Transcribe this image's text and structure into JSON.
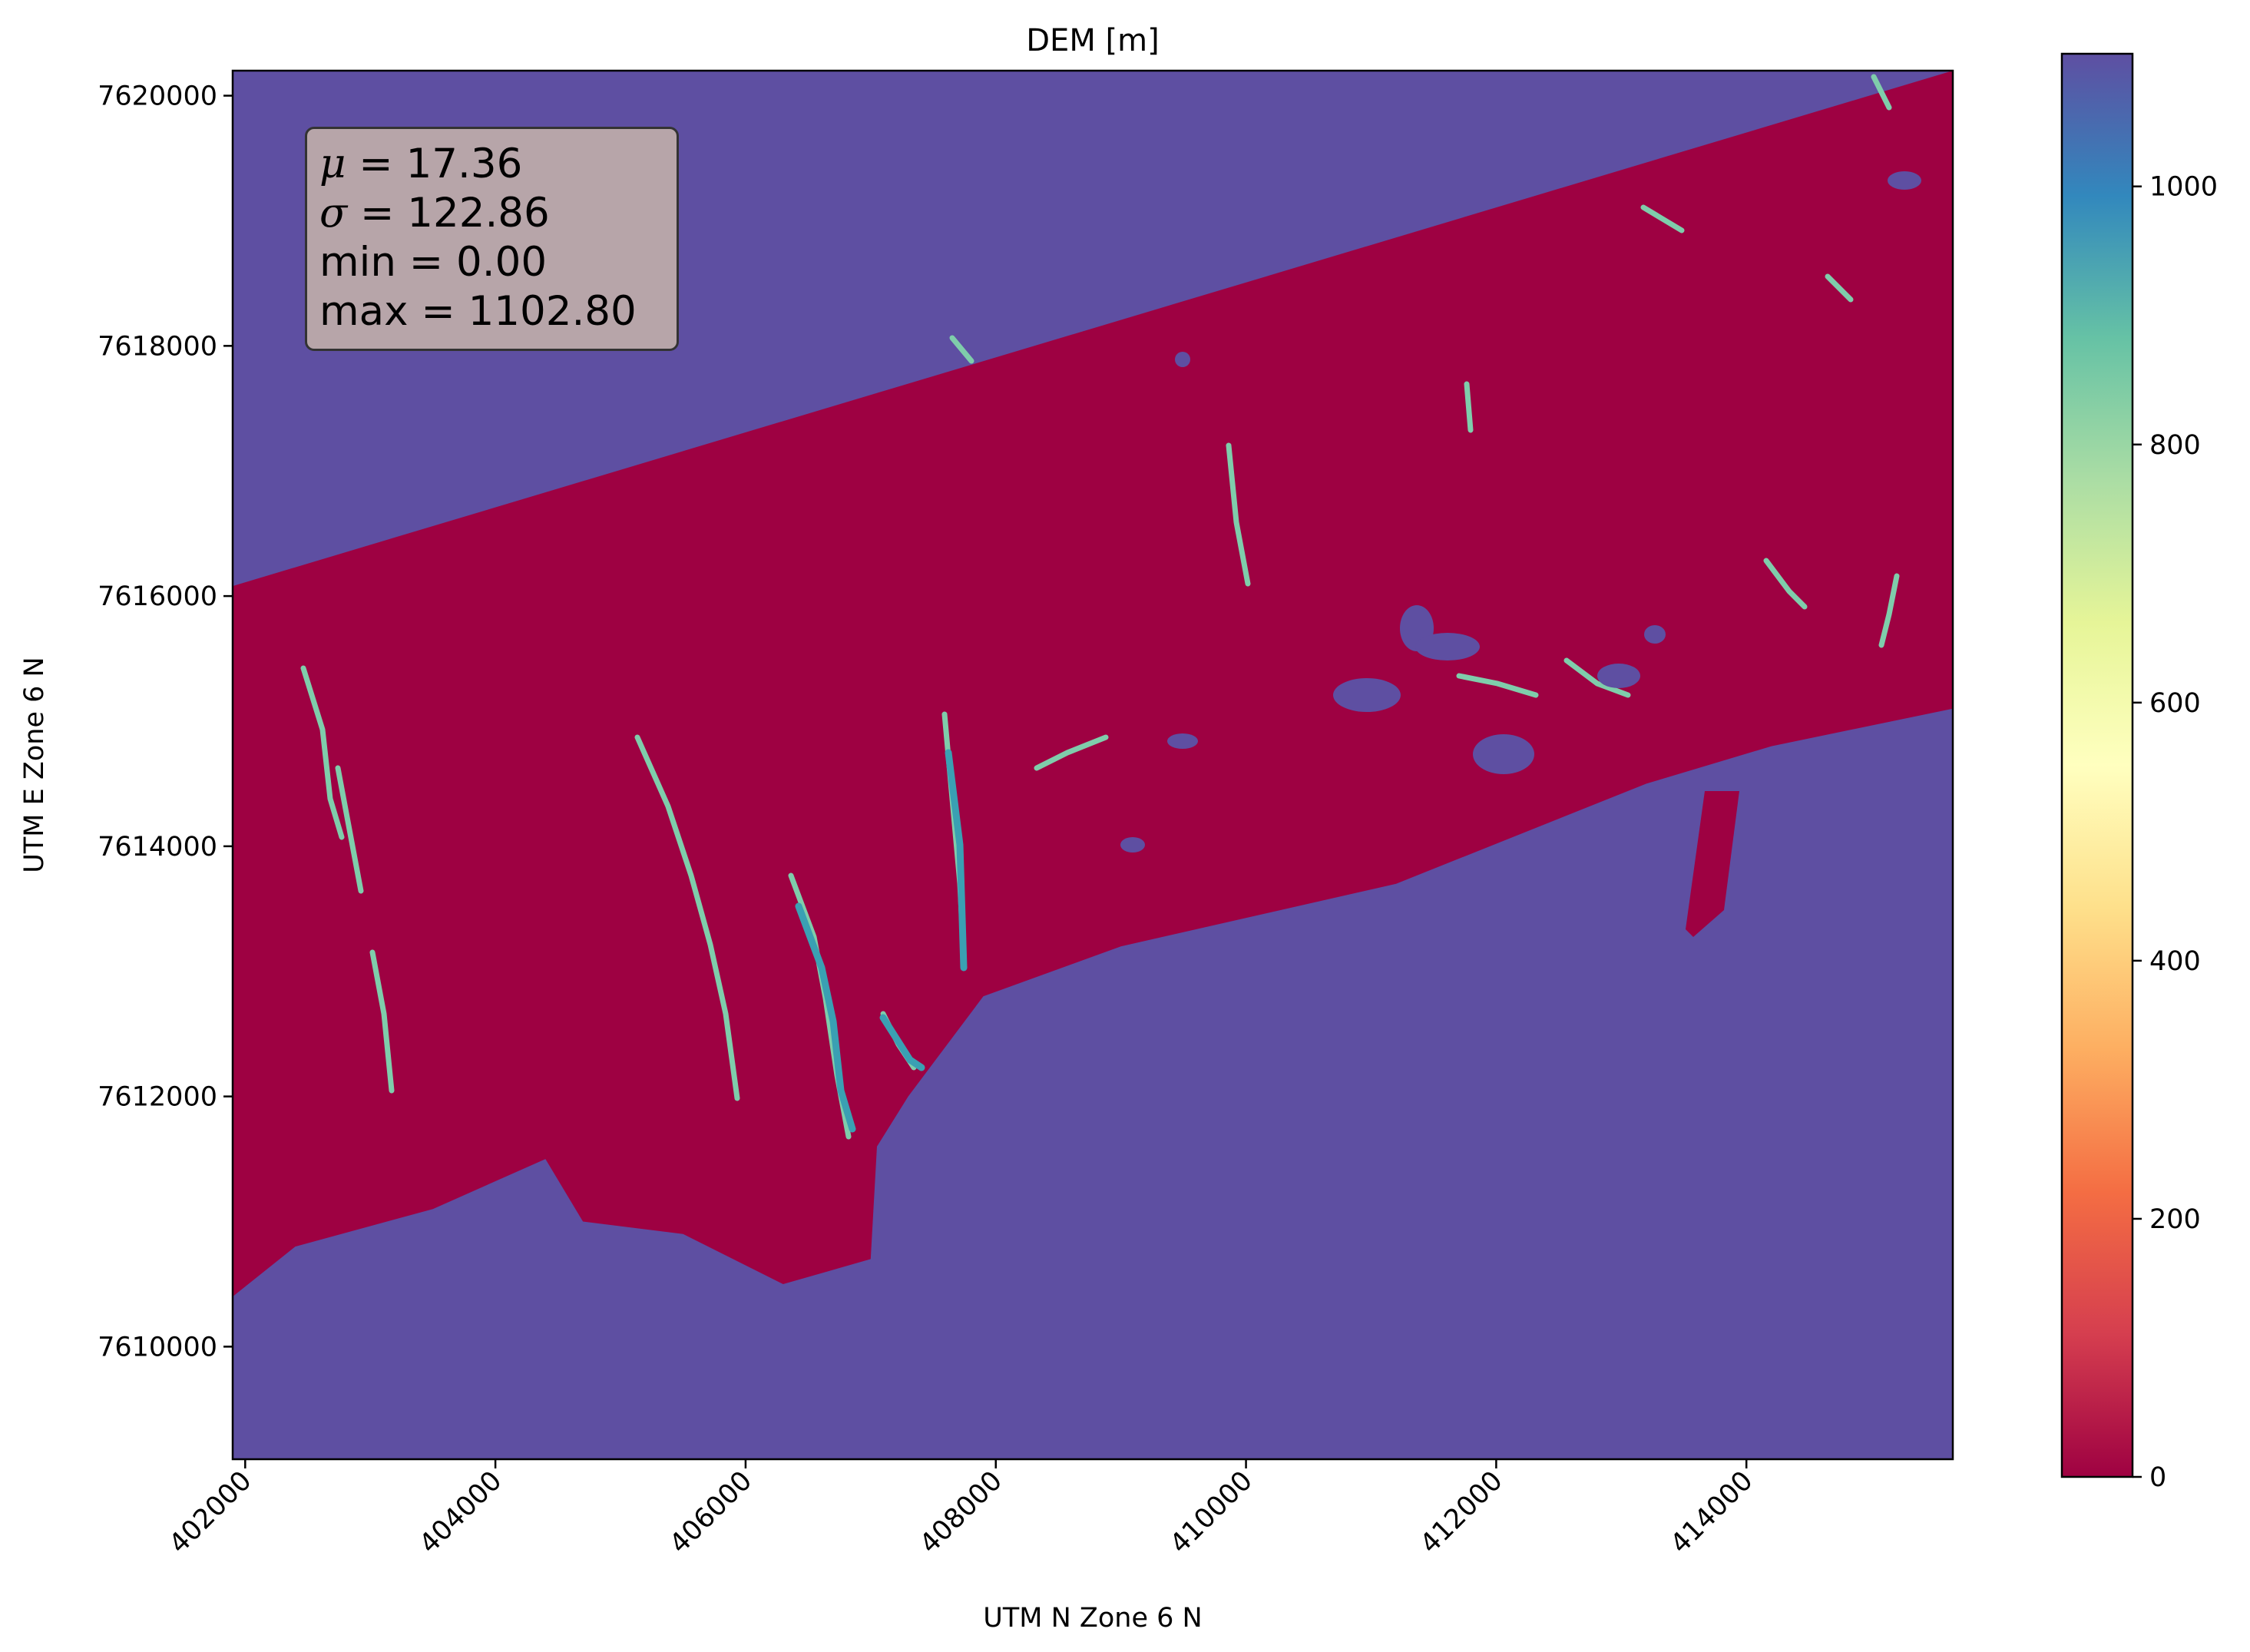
{
  "chart_data": {
    "type": "heatmap",
    "title": "DEM [m]",
    "xlabel": "UTM N Zone 6 N",
    "ylabel": "UTM E Zone 6 N",
    "xlim": [
      401900,
      415650
    ],
    "ylim": [
      7609100,
      7620200
    ],
    "x_ticks": [
      402000,
      404000,
      406000,
      408000,
      410000,
      412000,
      414000
    ],
    "x_tick_labels": [
      "402000",
      "404000",
      "406000",
      "408000",
      "410000",
      "412000",
      "414000"
    ],
    "y_ticks": [
      7610000,
      7612000,
      7614000,
      7616000,
      7618000,
      7620000
    ],
    "y_tick_labels": [
      "7610000",
      "7612000",
      "7614000",
      "7616000",
      "7618000",
      "7620000"
    ],
    "colormap": "Spectral",
    "colorbar": {
      "range": [
        0,
        1102.8
      ],
      "ticks": [
        0,
        200,
        400,
        600,
        800,
        1000
      ],
      "tick_labels": [
        "0",
        "200",
        "400",
        "600",
        "800",
        "1000"
      ]
    },
    "stats": {
      "mean_label": "μ",
      "mean_value": "17.36",
      "std_label": "σ",
      "std_value": "122.86",
      "min_line": "min = 0.00",
      "max_line": "max = 1102.80"
    },
    "nodata_color": "#5e4fa2",
    "terrain_color": "#9e0142",
    "feature_color": "#7fcdab",
    "water_feature_color": "#3aa0b3",
    "data_extent_outline": [
      [
        401900,
        7616080
      ],
      [
        415650,
        7620200
      ],
      [
        415650,
        7615100
      ],
      [
        414200,
        7614800
      ],
      [
        413200,
        7614500
      ],
      [
        411200,
        7613700
      ],
      [
        409000,
        7613200
      ],
      [
        407900,
        7612800
      ],
      [
        407300,
        7612000
      ],
      [
        407050,
        7611600
      ],
      [
        407000,
        7610700
      ],
      [
        406650,
        7610600
      ],
      [
        406300,
        7610500
      ],
      [
        405500,
        7610900
      ],
      [
        404700,
        7611000
      ],
      [
        404400,
        7611500
      ],
      [
        403500,
        7611100
      ],
      [
        402400,
        7610800
      ],
      [
        401900,
        7610400
      ]
    ]
  }
}
